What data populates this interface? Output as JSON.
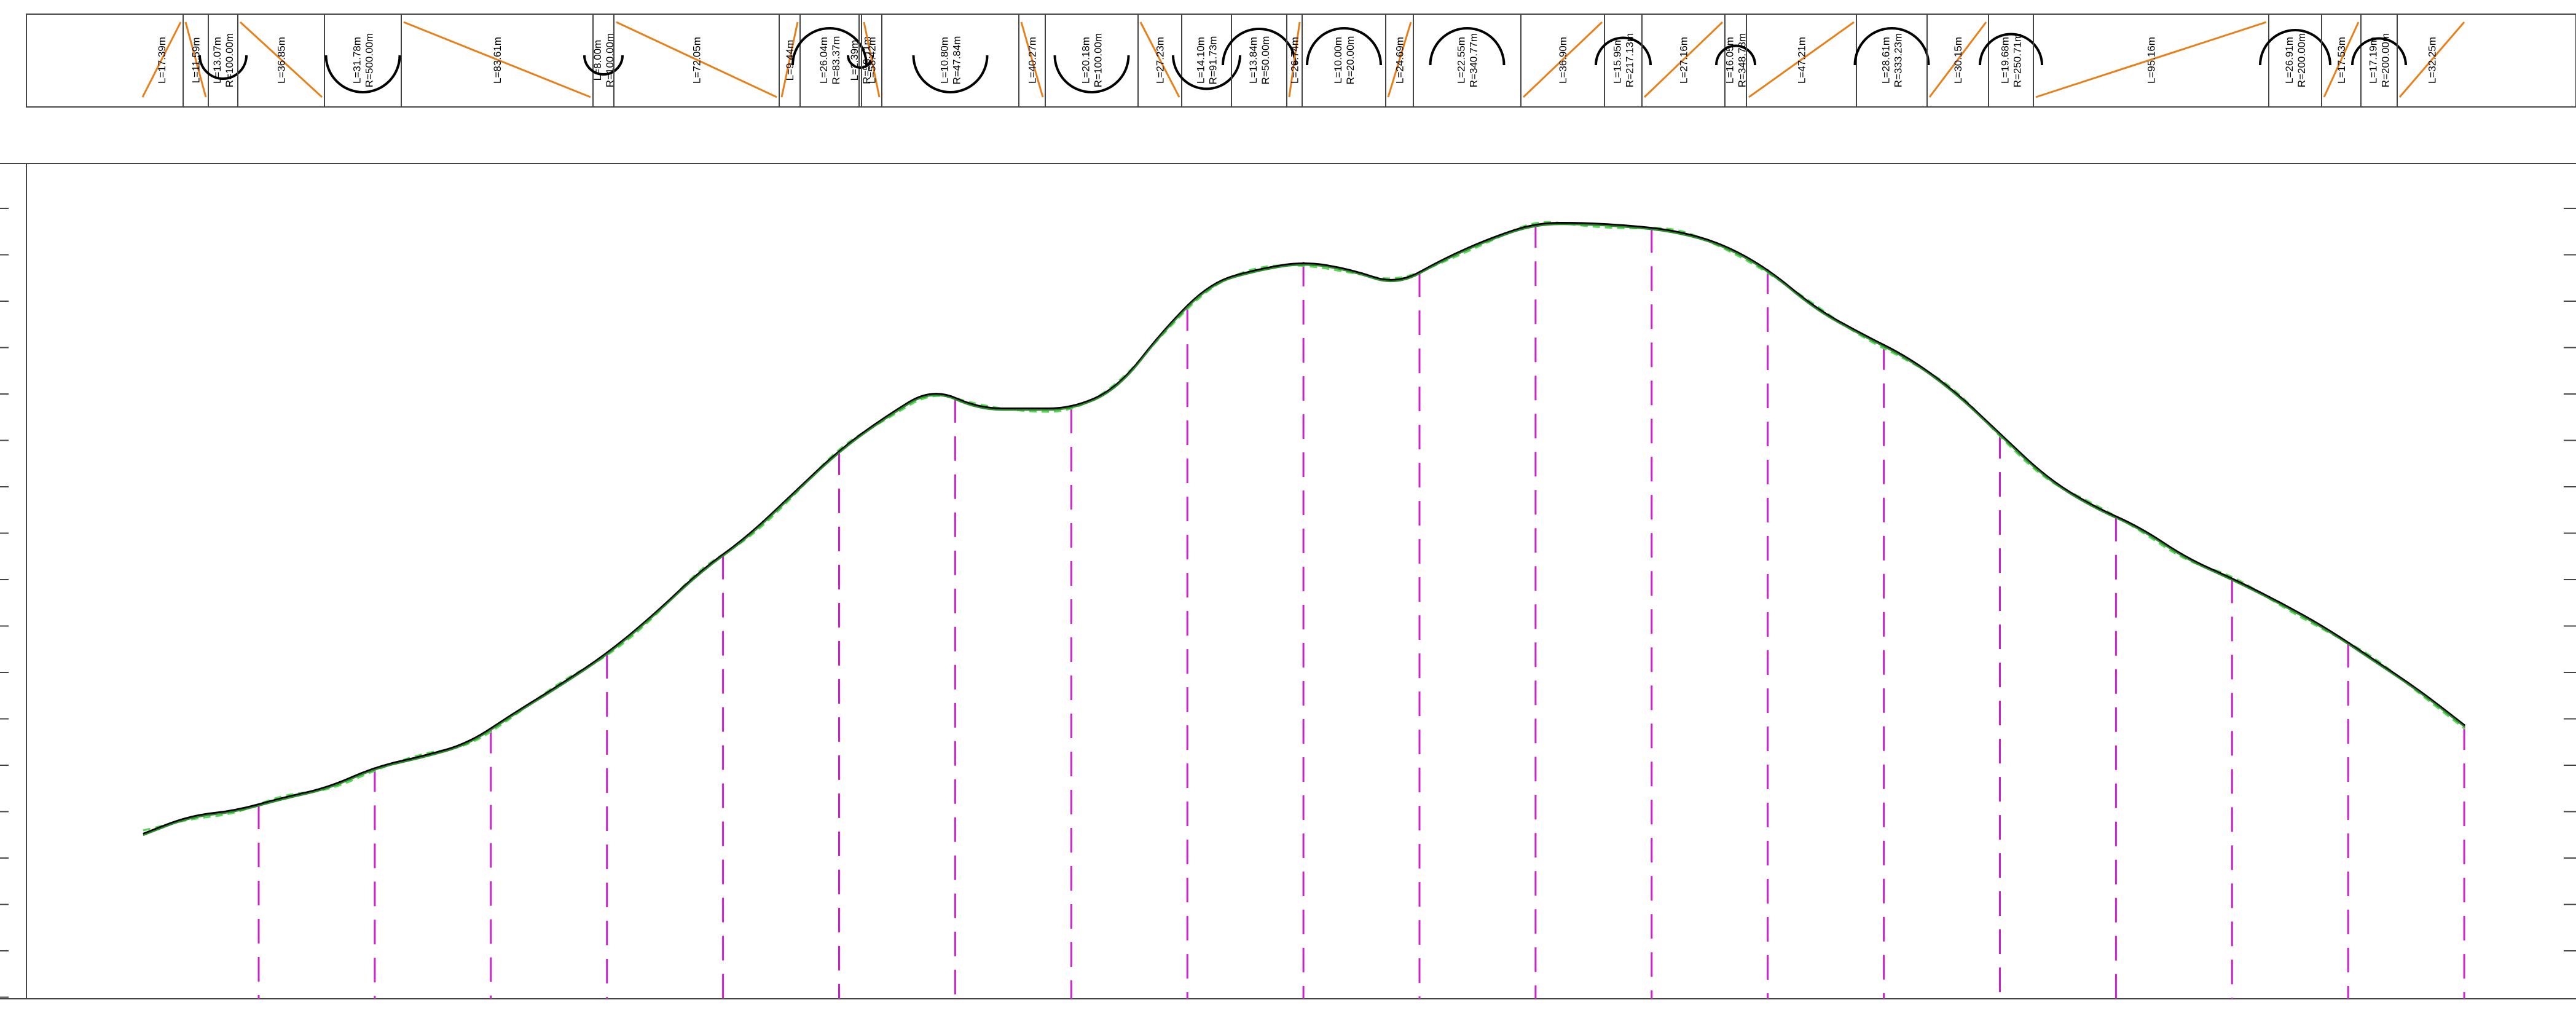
{
  "colors": {
    "frame": "#444444",
    "tangent": "#E8801A",
    "curve": "#000000",
    "ground": "#000000",
    "design": "#2E8B2E",
    "design_dashed": "#57D957",
    "station": "#CC22CC"
  },
  "alignment": {
    "segments": [
      {
        "type": "tangent",
        "label1": "L=17.39m",
        "label2": ""
      },
      {
        "type": "tangent",
        "label1": "L=11.59m",
        "label2": ""
      },
      {
        "type": "curve",
        "label1": "L=13.07m",
        "label2": "R=100.00m"
      },
      {
        "type": "tangent",
        "label1": "L=36.85m",
        "label2": ""
      },
      {
        "type": "curve",
        "label1": "L=31.78m",
        "label2": "R=500.00m"
      },
      {
        "type": "tangent",
        "label1": "L=83.61m",
        "label2": ""
      },
      {
        "type": "curve",
        "label1": "L=8.00m",
        "label2": "R=100.00m"
      },
      {
        "type": "tangent",
        "label1": "L=72.05m",
        "label2": ""
      },
      {
        "type": "tangent",
        "label1": "L=9.44m",
        "label2": ""
      },
      {
        "type": "curve",
        "label1": "L=26.04m",
        "label2": "R=83.37m"
      },
      {
        "type": "curve",
        "label1": "L=2.39m",
        "label2": "R=58.11m"
      },
      {
        "type": "tangent",
        "label1": "L=58.42m",
        "label2": ""
      },
      {
        "type": "curve",
        "label1": "L=10.80m",
        "label2": "R=47.84m"
      },
      {
        "type": "tangent",
        "label1": "L=40.27m",
        "label2": ""
      },
      {
        "type": "curve",
        "label1": "L=20.18m",
        "label2": "R=100.00m"
      },
      {
        "type": "tangent",
        "label1": "L=27.23m",
        "label2": ""
      },
      {
        "type": "curve",
        "label1": "L=14.10m",
        "label2": "R=91.73m"
      },
      {
        "type": "curve",
        "label1": "L=13.84m",
        "label2": "R=50.00m"
      },
      {
        "type": "tangent",
        "label1": "L=26.74m",
        "label2": ""
      },
      {
        "type": "curve",
        "label1": "L=10.00m",
        "label2": "R=20.00m"
      },
      {
        "type": "tangent",
        "label1": "L=24.69m",
        "label2": ""
      },
      {
        "type": "curve",
        "label1": "L=22.55m",
        "label2": "R=340.77m"
      },
      {
        "type": "tangent",
        "label1": "L=36.90m",
        "label2": ""
      },
      {
        "type": "curve",
        "label1": "L=15.95m",
        "label2": "R=217.13m"
      },
      {
        "type": "tangent",
        "label1": "L=27.16m",
        "label2": ""
      },
      {
        "type": "curve",
        "label1": "L=16.05m",
        "label2": "R=348.78m"
      },
      {
        "type": "tangent",
        "label1": "L=47.21m",
        "label2": ""
      },
      {
        "type": "curve",
        "label1": "L=28.61m",
        "label2": "R=333.23m"
      },
      {
        "type": "tangent",
        "label1": "L=30.15m",
        "label2": ""
      },
      {
        "type": "curve",
        "label1": "L=19.68m",
        "label2": "R=250.71m"
      },
      {
        "type": "tangent",
        "label1": "L=95.16m",
        "label2": ""
      },
      {
        "type": "curve",
        "label1": "L=26.91m",
        "label2": "R=200.00m"
      },
      {
        "type": "tangent",
        "label1": "L=17.53m",
        "label2": ""
      },
      {
        "type": "curve",
        "label1": "L=17.19m",
        "label2": "R=200.00m"
      },
      {
        "type": "tangent",
        "label1": "L=32.25m",
        "label2": ""
      }
    ]
  },
  "profile": {
    "ground_elevations": [
      60,
      67,
      69,
      74,
      78,
      86,
      90,
      95,
      107,
      118,
      130,
      145,
      162,
      175,
      192,
      209,
      222,
      233,
      225,
      225,
      225,
      233,
      256,
      274,
      279,
      282,
      279,
      273,
      283,
      291,
      297,
      297,
      296,
      294,
      289,
      279,
      264,
      254,
      245,
      232,
      215,
      198,
      187,
      179,
      167,
      159,
      150,
      140,
      128,
      116,
      102
    ]
  }
}
